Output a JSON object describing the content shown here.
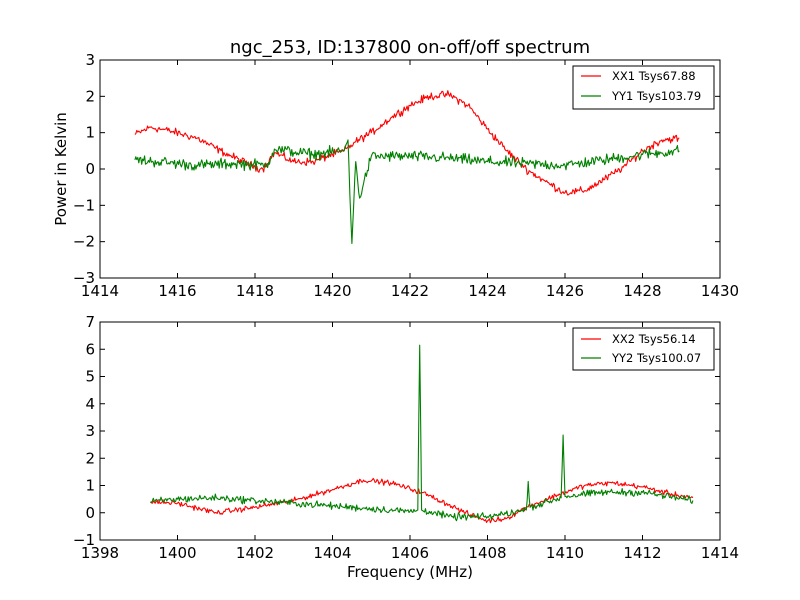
{
  "chart_data": [
    {
      "type": "line",
      "title": "ngc_253, ID:137800 on-off/off spectrum",
      "xlabel": "",
      "ylabel": "Power in Kelvin",
      "xlim": [
        1414,
        1430
      ],
      "ylim": [
        -3,
        3
      ],
      "xticks": [
        1414,
        1416,
        1418,
        1420,
        1422,
        1424,
        1426,
        1428,
        1430
      ],
      "xtick_labels": [
        "1414",
        "1416",
        "1418",
        "1420",
        "1422",
        "1424",
        "1426",
        "1428",
        "1430"
      ],
      "yticks": [
        -3,
        -2,
        -1,
        0,
        1,
        2,
        3
      ],
      "ytick_labels": [
        "−3",
        "−2",
        "−1",
        "0",
        "1",
        "2",
        "3"
      ],
      "legend_position": "top-right",
      "grid": false,
      "series": [
        {
          "name": "XX1 Tsys67.88",
          "color": "#ff0000",
          "x": [
            1414.9,
            1415.3,
            1415.8,
            1416.5,
            1417.2,
            1418.0,
            1418.2,
            1418.5,
            1419.0,
            1419.5,
            1420.0,
            1420.3,
            1420.6,
            1421.0,
            1421.5,
            1422.0,
            1422.5,
            1423.0,
            1423.5,
            1424.0,
            1424.5,
            1425.0,
            1425.5,
            1426.0,
            1426.5,
            1427.0,
            1427.5,
            1428.0,
            1428.5,
            1428.95
          ],
          "y": [
            0.95,
            1.15,
            1.05,
            0.85,
            0.45,
            0.05,
            0.0,
            0.45,
            0.2,
            0.2,
            0.4,
            0.5,
            0.75,
            1.0,
            1.4,
            1.75,
            2.0,
            2.05,
            1.75,
            1.1,
            0.5,
            0.0,
            -0.35,
            -0.65,
            -0.6,
            -0.3,
            0.05,
            0.5,
            0.8,
            0.85
          ],
          "noise": 0.09
        },
        {
          "name": "YY1 Tsys103.79",
          "color": "#008000",
          "x": [
            1414.9,
            1415.5,
            1416.5,
            1417.5,
            1418.3,
            1418.5,
            1419.5,
            1420.3,
            1420.4,
            1420.5,
            1420.6,
            1420.7,
            1421.0,
            1422.0,
            1423.0,
            1424.0,
            1425.0,
            1426.0,
            1427.0,
            1428.0,
            1428.95
          ],
          "y": [
            0.25,
            0.2,
            0.1,
            0.15,
            0.1,
            0.55,
            0.4,
            0.5,
            0.8,
            -2.05,
            0.2,
            -0.8,
            0.35,
            0.35,
            0.3,
            0.2,
            0.15,
            0.1,
            0.25,
            0.4,
            0.5
          ],
          "noise": 0.13
        }
      ]
    },
    {
      "type": "line",
      "title": "",
      "xlabel": "Frequency (MHz)",
      "ylabel": "",
      "xlim": [
        1398,
        1414
      ],
      "ylim": [
        -1,
        7
      ],
      "xticks": [
        1398,
        1400,
        1402,
        1404,
        1406,
        1408,
        1410,
        1412,
        1414
      ],
      "xtick_labels": [
        "1398",
        "1400",
        "1402",
        "1404",
        "1406",
        "1408",
        "1410",
        "1412",
        "1414"
      ],
      "yticks": [
        -1,
        0,
        1,
        2,
        3,
        4,
        5,
        6,
        7
      ],
      "ytick_labels": [
        "−1",
        "0",
        "1",
        "2",
        "3",
        "4",
        "5",
        "6",
        "7"
      ],
      "legend_position": "top-right",
      "grid": false,
      "series": [
        {
          "name": "XX2 Tsys56.14",
          "color": "#ff0000",
          "x": [
            1399.3,
            1400.0,
            1401.0,
            1402.0,
            1403.0,
            1404.0,
            1404.8,
            1405.5,
            1406.3,
            1407.0,
            1407.5,
            1408.0,
            1408.5,
            1409.0,
            1409.8,
            1410.5,
            1411.2,
            1412.0,
            1412.7,
            1413.3
          ],
          "y": [
            0.4,
            0.35,
            0.0,
            0.2,
            0.45,
            0.85,
            1.2,
            1.1,
            0.75,
            0.3,
            -0.05,
            -0.3,
            -0.2,
            0.2,
            0.65,
            1.0,
            1.1,
            0.95,
            0.7,
            0.55
          ],
          "noise": 0.08
        },
        {
          "name": "YY2 Tsys100.07",
          "color": "#008000",
          "x": [
            1399.3,
            1400.0,
            1401.0,
            1402.0,
            1403.0,
            1404.0,
            1405.0,
            1406.0,
            1406.2,
            1406.25,
            1406.3,
            1406.5,
            1407.0,
            1408.0,
            1409.0,
            1409.05,
            1409.1,
            1409.9,
            1409.95,
            1410.0,
            1411.0,
            1412.0,
            1413.3
          ],
          "y": [
            0.4,
            0.5,
            0.55,
            0.45,
            0.35,
            0.25,
            0.15,
            0.05,
            0.1,
            6.15,
            0.1,
            0.05,
            -0.15,
            -0.15,
            0.1,
            1.15,
            0.2,
            0.55,
            2.85,
            0.6,
            0.75,
            0.75,
            0.45
          ],
          "noise": 0.11
        }
      ]
    }
  ]
}
